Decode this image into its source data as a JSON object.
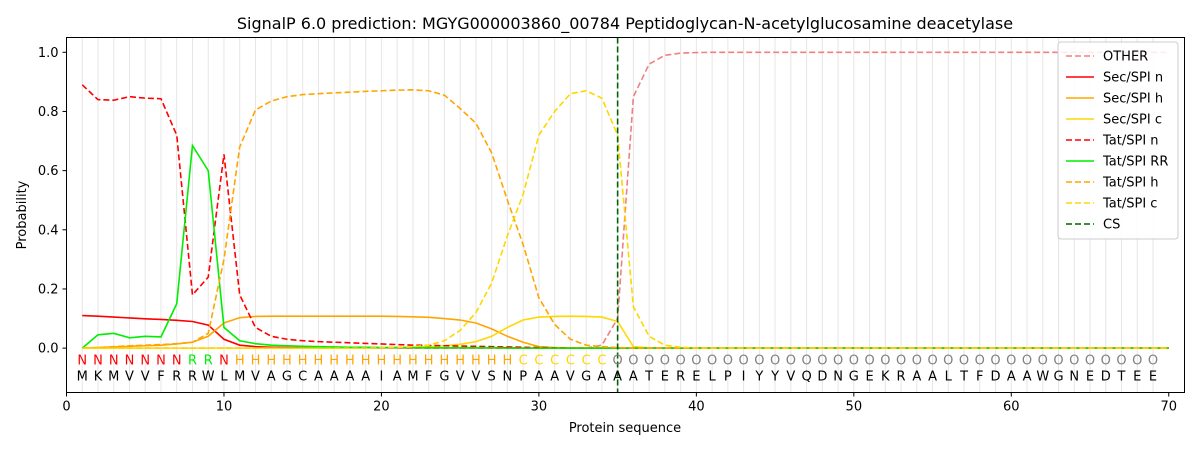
{
  "chart_data": {
    "type": "line",
    "title": "SignalP 6.0 prediction: MGYG000003860_00784 Peptidoglycan-N-acetylglucosamine deacetylase",
    "xlabel": "Protein sequence",
    "ylabel": "Probability",
    "xlim": [
      0,
      71
    ],
    "ylim": [
      -0.15,
      1.05
    ],
    "xticks": [
      0,
      10,
      20,
      30,
      40,
      50,
      60,
      70
    ],
    "yticks": [
      0.0,
      0.2,
      0.4,
      0.6,
      0.8,
      1.0
    ],
    "x_tick_labels": [
      "0",
      "10",
      "20",
      "30",
      "40",
      "50",
      "60",
      "70"
    ],
    "y_tick_labels": [
      "0.0",
      "0.2",
      "0.4",
      "0.6",
      "0.8",
      "1.0"
    ],
    "grid": "vertical lines at each residue",
    "legend_position": "upper right",
    "sequence": "MKMVVFRRWLMVAGCAAAAIAMFGVVSNPAAVGAAATERELPIYYVQDNGEKRAALTFDAAWGNEDTEE",
    "region_labels": "NNNNNNNRRNHHHHHHHHHHHHHHHHHHCCCCCCOOOOOOOOOOOOOOOOOOOOOOOOOOOOOOOOOOO",
    "region_colors": {
      "N": "#ff0000",
      "R": "#00ee00",
      "H": "#ffa500",
      "C": "#ffd700",
      "O": "#808080"
    },
    "cleavage_site": 35,
    "series": [
      {
        "name": "OTHER",
        "color": "#f08080",
        "dash": "dashed",
        "values": [
          0,
          0,
          0,
          0,
          0,
          0,
          0,
          0,
          0,
          0,
          0,
          0,
          0,
          0,
          0,
          0,
          0,
          0,
          0,
          0,
          0,
          0,
          0,
          0,
          0,
          0,
          0,
          0,
          0,
          0,
          0,
          0,
          0,
          0.01,
          0.1,
          0.85,
          0.96,
          0.99,
          0.997,
          0.999,
          1,
          1,
          1,
          1,
          1,
          1,
          1,
          1,
          1,
          1,
          1,
          1,
          1,
          1,
          1,
          1,
          1,
          1,
          1,
          1,
          1,
          1,
          1,
          1,
          1,
          1,
          1,
          1,
          1,
          1
        ]
      },
      {
        "name": "Sec/SPI n",
        "color": "#ff0000",
        "dash": "solid",
        "values": [
          0.11,
          0.108,
          0.105,
          0.102,
          0.099,
          0.097,
          0.094,
          0.09,
          0.078,
          0.03,
          0.01,
          0.005,
          0.003,
          0.002,
          0.002,
          0.001,
          0.001,
          0.001,
          0.001,
          0.001,
          0.001,
          0.001,
          0.001,
          0.001,
          0.001,
          0.001,
          0.001,
          0.001,
          0,
          0,
          0,
          0,
          0,
          0,
          0,
          0,
          0,
          0,
          0,
          0,
          0,
          0,
          0,
          0,
          0,
          0,
          0,
          0,
          0,
          0,
          0,
          0,
          0,
          0,
          0,
          0,
          0,
          0,
          0,
          0,
          0,
          0,
          0,
          0,
          0,
          0,
          0,
          0,
          0,
          0
        ]
      },
      {
        "name": "Sec/SPI h",
        "color": "#ffa500",
        "dash": "solid",
        "values": [
          0,
          0.002,
          0.004,
          0.006,
          0.008,
          0.01,
          0.014,
          0.02,
          0.04,
          0.085,
          0.103,
          0.107,
          0.108,
          0.108,
          0.108,
          0.108,
          0.108,
          0.108,
          0.108,
          0.108,
          0.107,
          0.106,
          0.104,
          0.1,
          0.095,
          0.085,
          0.065,
          0.04,
          0.02,
          0.005,
          0.002,
          0.001,
          0.001,
          0,
          0,
          0,
          0,
          0,
          0,
          0,
          0,
          0,
          0,
          0,
          0,
          0,
          0,
          0,
          0,
          0,
          0,
          0,
          0,
          0,
          0,
          0,
          0,
          0,
          0,
          0,
          0,
          0,
          0,
          0,
          0,
          0,
          0,
          0,
          0,
          0
        ]
      },
      {
        "name": "Sec/SPI c",
        "color": "#ffd700",
        "dash": "solid",
        "values": [
          0,
          0,
          0,
          0,
          0,
          0,
          0,
          0,
          0,
          0,
          0,
          0,
          0,
          0,
          0,
          0,
          0,
          0,
          0.001,
          0.001,
          0.002,
          0.003,
          0.005,
          0.008,
          0.013,
          0.022,
          0.04,
          0.07,
          0.095,
          0.105,
          0.107,
          0.108,
          0.107,
          0.105,
          0.09,
          0.005,
          0.001,
          0,
          0,
          0,
          0,
          0,
          0,
          0,
          0,
          0,
          0,
          0,
          0,
          0,
          0,
          0,
          0,
          0,
          0,
          0,
          0,
          0,
          0,
          0,
          0,
          0,
          0,
          0,
          0,
          0,
          0,
          0,
          0,
          0
        ]
      },
      {
        "name": "Tat/SPI n",
        "color": "#ff0000",
        "dash": "dashed",
        "values": [
          0.89,
          0.84,
          0.838,
          0.85,
          0.845,
          0.843,
          0.72,
          0.18,
          0.24,
          0.655,
          0.18,
          0.07,
          0.04,
          0.03,
          0.025,
          0.022,
          0.02,
          0.018,
          0.016,
          0.014,
          0.012,
          0.01,
          0.009,
          0.008,
          0.007,
          0.006,
          0.005,
          0.004,
          0.003,
          0.002,
          0.001,
          0,
          0,
          0,
          0,
          0,
          0,
          0,
          0,
          0,
          0,
          0,
          0,
          0,
          0,
          0,
          0,
          0,
          0,
          0,
          0,
          0,
          0,
          0,
          0,
          0,
          0,
          0,
          0,
          0,
          0,
          0,
          0,
          0,
          0,
          0,
          0,
          0,
          0,
          0
        ]
      },
      {
        "name": "Tat/SPI RR",
        "color": "#00ee00",
        "dash": "solid",
        "values": [
          0,
          0.045,
          0.05,
          0.035,
          0.04,
          0.038,
          0.15,
          0.685,
          0.6,
          0.07,
          0.025,
          0.015,
          0.01,
          0.008,
          0.006,
          0.005,
          0.004,
          0.003,
          0.003,
          0.002,
          0.002,
          0.002,
          0.001,
          0.001,
          0.001,
          0.001,
          0.001,
          0,
          0,
          0,
          0,
          0,
          0,
          0,
          0,
          0,
          0,
          0,
          0,
          0,
          0,
          0,
          0,
          0,
          0,
          0,
          0,
          0,
          0,
          0,
          0,
          0,
          0,
          0,
          0,
          0,
          0,
          0,
          0,
          0,
          0,
          0,
          0,
          0,
          0,
          0,
          0,
          0,
          0,
          0
        ]
      },
      {
        "name": "Tat/SPI h",
        "color": "#ffa500",
        "dash": "dashed",
        "values": [
          0,
          0.002,
          0.005,
          0.008,
          0.01,
          0.012,
          0.015,
          0.02,
          0.05,
          0.3,
          0.68,
          0.805,
          0.835,
          0.85,
          0.857,
          0.86,
          0.863,
          0.865,
          0.868,
          0.87,
          0.872,
          0.873,
          0.87,
          0.855,
          0.81,
          0.76,
          0.66,
          0.5,
          0.35,
          0.17,
          0.08,
          0.03,
          0.01,
          0.005,
          0.002,
          0,
          0,
          0,
          0,
          0,
          0,
          0,
          0,
          0,
          0,
          0,
          0,
          0,
          0,
          0,
          0,
          0,
          0,
          0,
          0,
          0,
          0,
          0,
          0,
          0,
          0,
          0,
          0,
          0,
          0,
          0,
          0,
          0,
          0,
          0
        ]
      },
      {
        "name": "Tat/SPI c",
        "color": "#ffd700",
        "dash": "dashed",
        "values": [
          0,
          0,
          0,
          0,
          0,
          0,
          0,
          0,
          0,
          0,
          0,
          0,
          0,
          0,
          0,
          0,
          0,
          0,
          0,
          0.001,
          0.002,
          0.005,
          0.01,
          0.025,
          0.06,
          0.12,
          0.22,
          0.38,
          0.52,
          0.72,
          0.8,
          0.86,
          0.87,
          0.845,
          0.72,
          0.14,
          0.04,
          0.01,
          0.003,
          0,
          0,
          0,
          0,
          0,
          0,
          0,
          0,
          0,
          0,
          0,
          0,
          0,
          0,
          0,
          0,
          0,
          0,
          0,
          0,
          0,
          0,
          0,
          0,
          0,
          0,
          0,
          0,
          0,
          0,
          0
        ]
      }
    ],
    "cs_series": {
      "name": "CS",
      "color": "#006400",
      "dash": "dashed"
    }
  }
}
